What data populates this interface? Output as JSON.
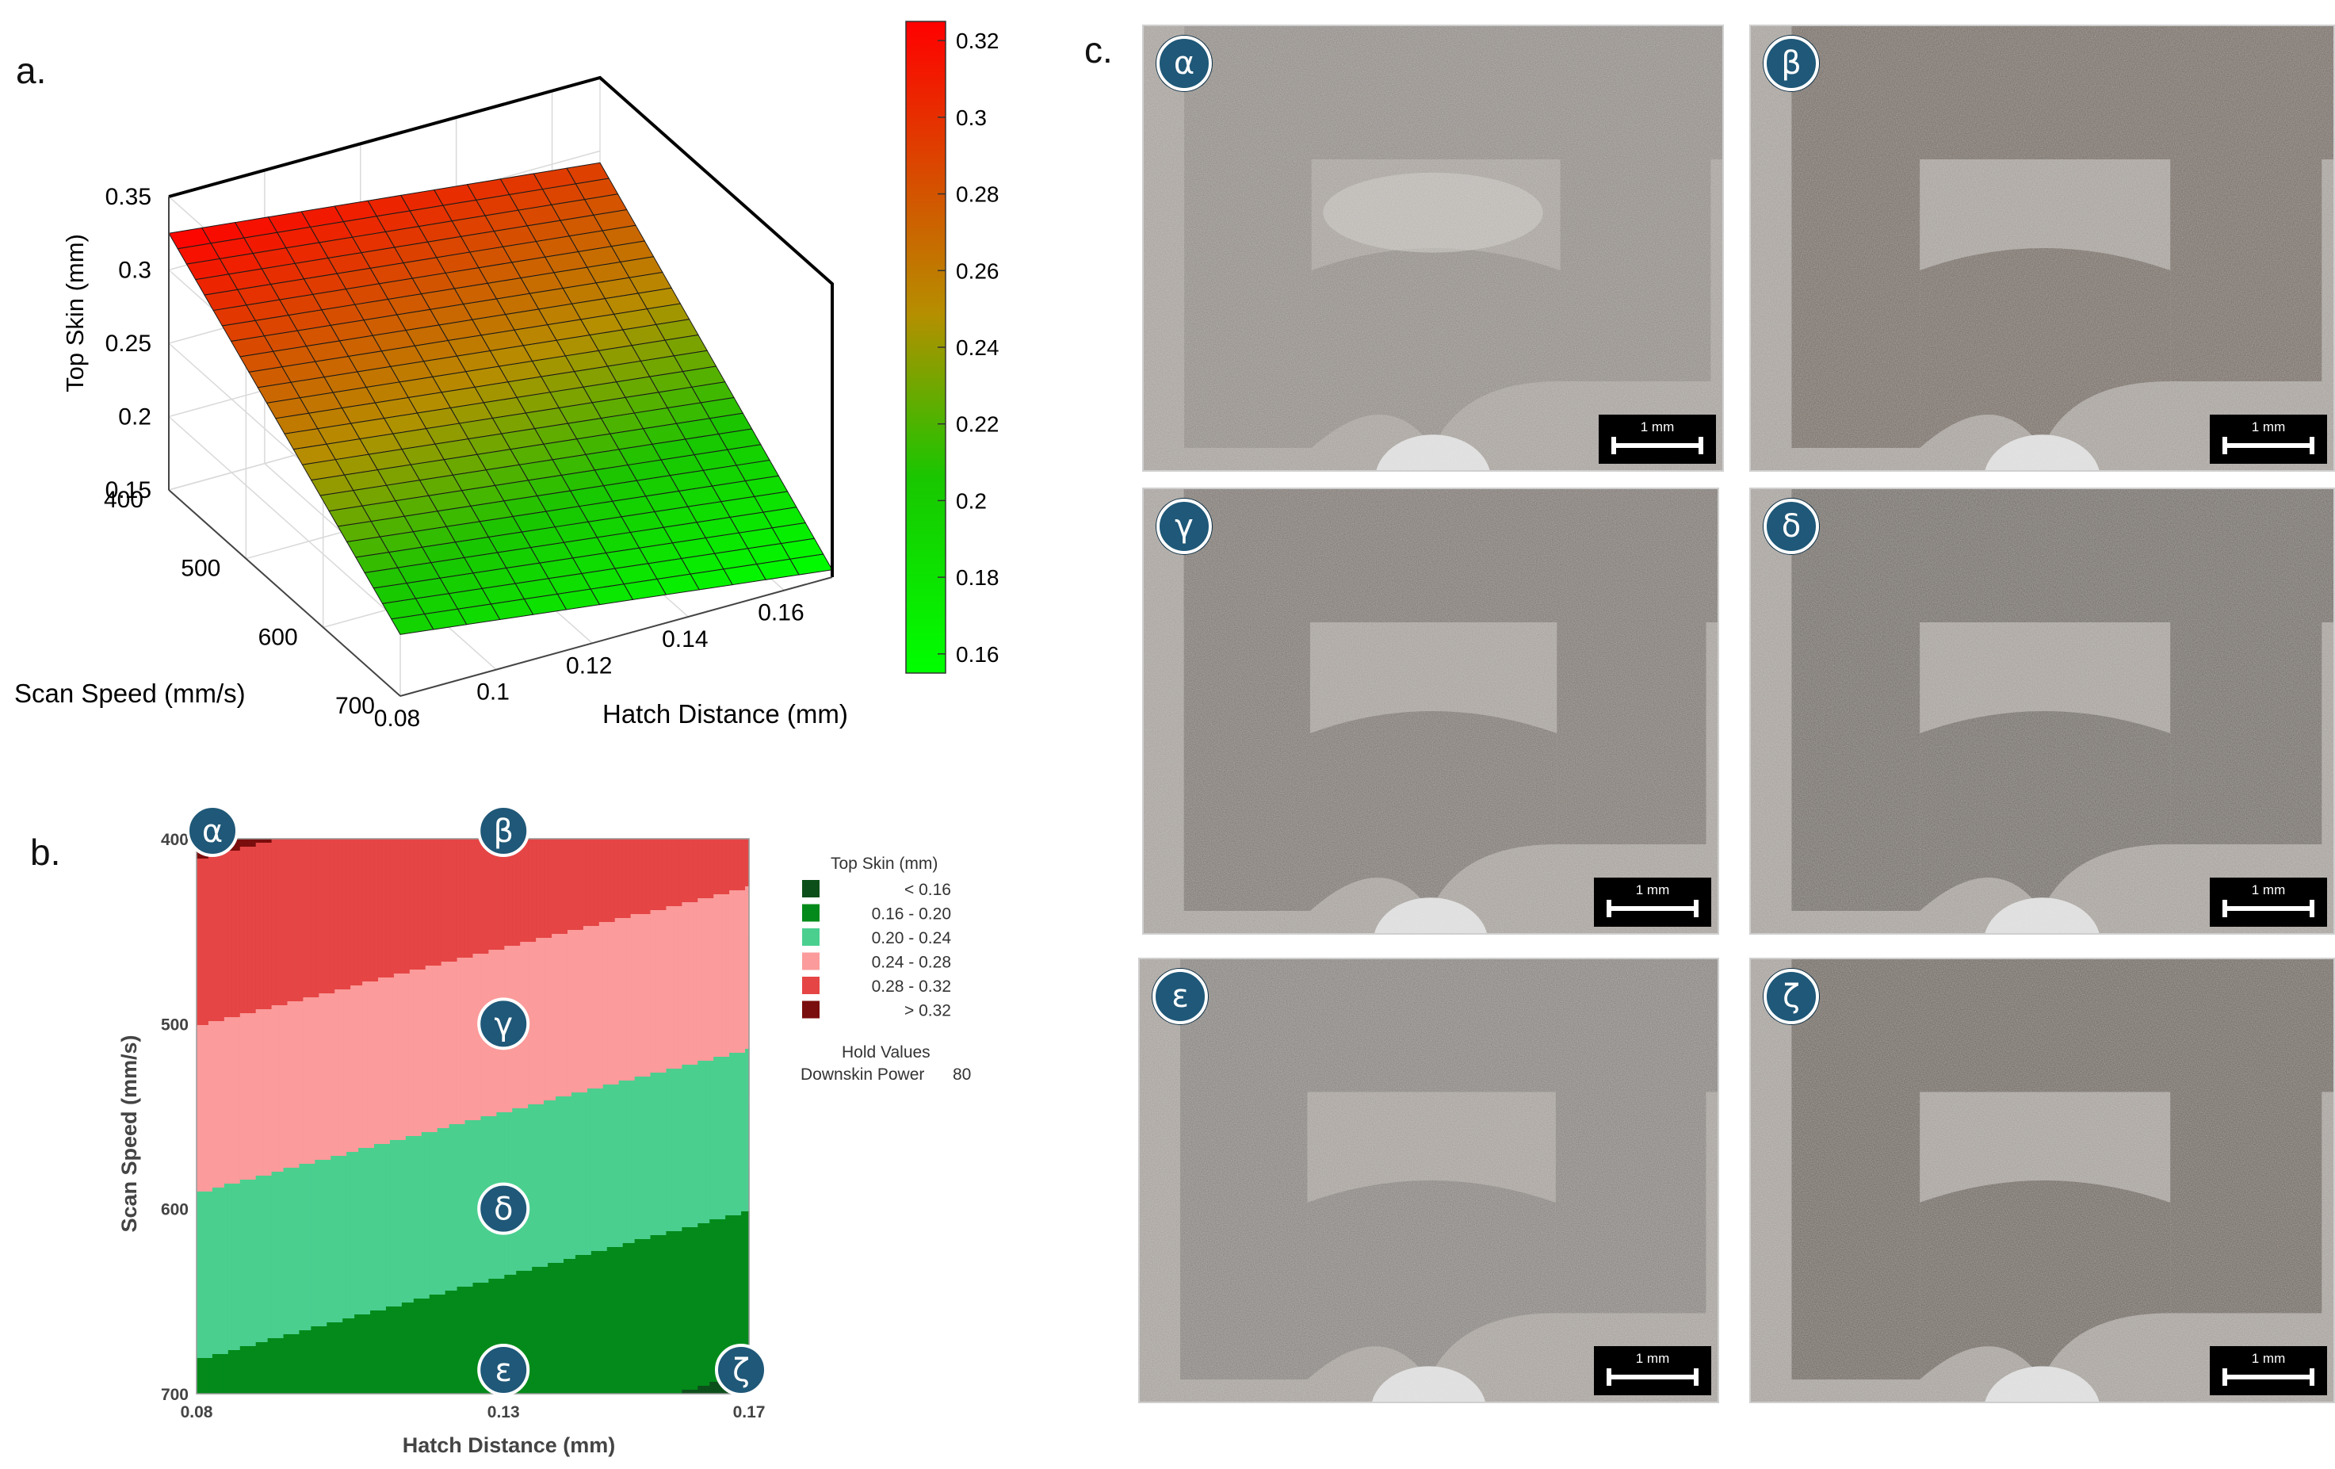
{
  "panels": {
    "a": "a.",
    "b": "b.",
    "c": "c."
  },
  "chart_data": [
    {
      "type": "surface3d",
      "xlabel": "Hatch Distance (mm)",
      "ylabel": "Scan Speed (mm/s)",
      "zlabel": "Top Skin (mm)",
      "x_ticks": [
        "0.08",
        "0.1",
        "0.12",
        "0.14",
        "0.16"
      ],
      "y_ticks": [
        "400",
        "500",
        "600",
        "700"
      ],
      "z_ticks": [
        "0.15",
        "0.2",
        "0.25",
        "0.3",
        "0.35"
      ],
      "xlim": [
        0.08,
        0.17
      ],
      "ylim": [
        400,
        700
      ],
      "zlim": [
        0.15,
        0.35
      ],
      "corners": [
        {
          "hatch": 0.08,
          "speed": 400,
          "top_skin": 0.325
        },
        {
          "hatch": 0.17,
          "speed": 400,
          "top_skin": 0.292
        },
        {
          "hatch": 0.08,
          "speed": 700,
          "top_skin": 0.192
        },
        {
          "hatch": 0.17,
          "speed": 700,
          "top_skin": 0.155
        }
      ],
      "colorbar": {
        "ticks": [
          "0.32",
          "0.3",
          "0.28",
          "0.26",
          "0.24",
          "0.22",
          "0.2",
          "0.18",
          "0.16"
        ],
        "range": [
          0.155,
          0.325
        ],
        "colors": {
          "high": "#ff0000",
          "mid": "#b58f00",
          "low": "#00ff00"
        }
      }
    },
    {
      "type": "contour",
      "xlabel": "Hatch Distance (mm)",
      "ylabel": "Scan Speed (mm/s)",
      "x_ticks": [
        "0.08",
        "0.13",
        "0.17"
      ],
      "y_ticks": [
        "400",
        "500",
        "600",
        "700"
      ],
      "xlim": [
        0.08,
        0.17
      ],
      "ylim": [
        400,
        700
      ],
      "legend_title": "Top Skin (mm)",
      "levels": [
        {
          "label": "<  0.16",
          "color": "#0c4f1a"
        },
        {
          "label": "0.16  -  0.20",
          "color": "#038a1a"
        },
        {
          "label": "0.20  -  0.24",
          "color": "#4acf8f"
        },
        {
          "label": "0.24  -  0.28",
          "color": "#fb9b9b"
        },
        {
          "label": "0.28  -  0.32",
          "color": "#e54545"
        },
        {
          "label": ">  0.32",
          "color": "#7a0d0d"
        }
      ],
      "hold_values_title": "Hold Values",
      "hold_name": "Downskin Power",
      "hold_value": "80",
      "markers": [
        {
          "symbol": "α",
          "hatch": 0.08,
          "speed": 400
        },
        {
          "symbol": "β",
          "hatch": 0.13,
          "speed": 400
        },
        {
          "symbol": "γ",
          "hatch": 0.13,
          "speed": 500
        },
        {
          "symbol": "δ",
          "hatch": 0.13,
          "speed": 600
        },
        {
          "symbol": "ε",
          "hatch": 0.13,
          "speed": 700
        },
        {
          "symbol": "ζ",
          "hatch": 0.17,
          "speed": 700
        }
      ]
    }
  ],
  "micrographs": [
    {
      "symbol": "α",
      "scale": "1 mm",
      "tone": "#8a847f",
      "cavity": "open"
    },
    {
      "symbol": "β",
      "scale": "1 mm",
      "tone": "#6f655d",
      "cavity": "partial"
    },
    {
      "symbol": "γ",
      "scale": "1 mm",
      "tone": "#77706a",
      "cavity": "partial"
    },
    {
      "symbol": "δ",
      "scale": "1 mm",
      "tone": "#6c6660",
      "cavity": "partial"
    },
    {
      "symbol": "ε",
      "scale": "1 mm",
      "tone": "#807c78",
      "cavity": "partial"
    },
    {
      "symbol": "ζ",
      "scale": "1 mm",
      "tone": "#6a625b",
      "cavity": "partial"
    }
  ]
}
